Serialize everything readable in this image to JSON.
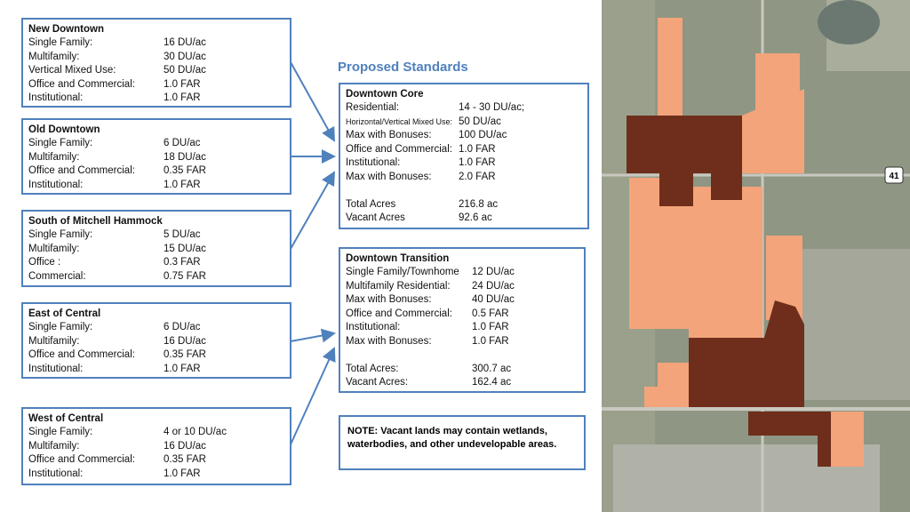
{
  "left_boxes": [
    {
      "title": "New Downtown",
      "rows": [
        [
          "Single Family:",
          "16 DU/ac"
        ],
        [
          "Multifamily:",
          "30 DU/ac"
        ],
        [
          "Vertical Mixed Use:",
          "50 DU/ac"
        ],
        [
          "Office and Commercial:",
          "1.0 FAR"
        ],
        [
          "Institutional:",
          "1.0 FAR"
        ]
      ]
    },
    {
      "title": "Old Downtown",
      "rows": [
        [
          "Single Family:",
          "6 DU/ac"
        ],
        [
          "Multifamily:",
          "18 DU/ac"
        ],
        [
          "Office and Commercial:",
          "0.35 FAR"
        ],
        [
          "Institutional:",
          "1.0 FAR"
        ]
      ]
    },
    {
      "title": "South of Mitchell Hammock",
      "rows": [
        [
          "Single Family:",
          "5 DU/ac"
        ],
        [
          "Multifamily:",
          "15 DU/ac"
        ],
        [
          "Office :",
          "0.3 FAR"
        ],
        [
          "Commercial:",
          "0.75 FAR"
        ]
      ]
    },
    {
      "title": "East of Central",
      "rows": [
        [
          "Single Family:",
          "6 DU/ac"
        ],
        [
          "Multifamily:",
          "16 DU/ac"
        ],
        [
          "Office and Commercial:",
          "0.35 FAR"
        ],
        [
          "Institutional:",
          "1.0 FAR"
        ]
      ]
    },
    {
      "title": "West of Central",
      "rows": [
        [
          "Single Family:",
          "4 or 10 DU/ac"
        ],
        [
          "Multifamily:",
          "16 DU/ac"
        ],
        [
          "Office and Commercial:",
          "0.35 FAR"
        ],
        [
          "Institutional:",
          "1.0 FAR"
        ]
      ]
    }
  ],
  "heading": "Proposed Standards",
  "right_boxes": [
    {
      "title": "Downtown Core",
      "rows": [
        [
          "Residential:",
          "14 - 30 DU/ac;"
        ],
        [
          "Horizontal/Vertical Mixed Use:",
          "50 DU/ac"
        ],
        [
          "Max with Bonuses:",
          "100 DU/ac"
        ],
        [
          "Office and Commercial:",
          "1.0 FAR"
        ],
        [
          "Institutional:",
          "1.0 FAR"
        ],
        [
          "Max with Bonuses:",
          "2.0 FAR"
        ]
      ],
      "totals": [
        [
          "Total Acres",
          "216.8 ac"
        ],
        [
          "Vacant Acres",
          "92.6 ac"
        ]
      ]
    },
    {
      "title": "Downtown Transition",
      "rows": [
        [
          "Single Family/Townhome",
          "12 DU/ac"
        ],
        [
          "Multifamily  Residential:",
          "24 DU/ac"
        ],
        [
          "Max with Bonuses:",
          "40 DU/ac"
        ],
        [
          "Office and Commercial:",
          "0.5 FAR"
        ],
        [
          "Institutional:",
          "1.0 FAR"
        ],
        [
          "Max with Bonuses:",
          "1.0 FAR"
        ]
      ],
      "totals": [
        [
          "Total Acres:",
          "300.7 ac"
        ],
        [
          "Vacant Acres:",
          "162.4 ac"
        ]
      ]
    }
  ],
  "note": "NOTE: Vacant lands may contain wetlands, waterbodies, and other undevelopable areas.",
  "map": {
    "route_sign": "41"
  }
}
